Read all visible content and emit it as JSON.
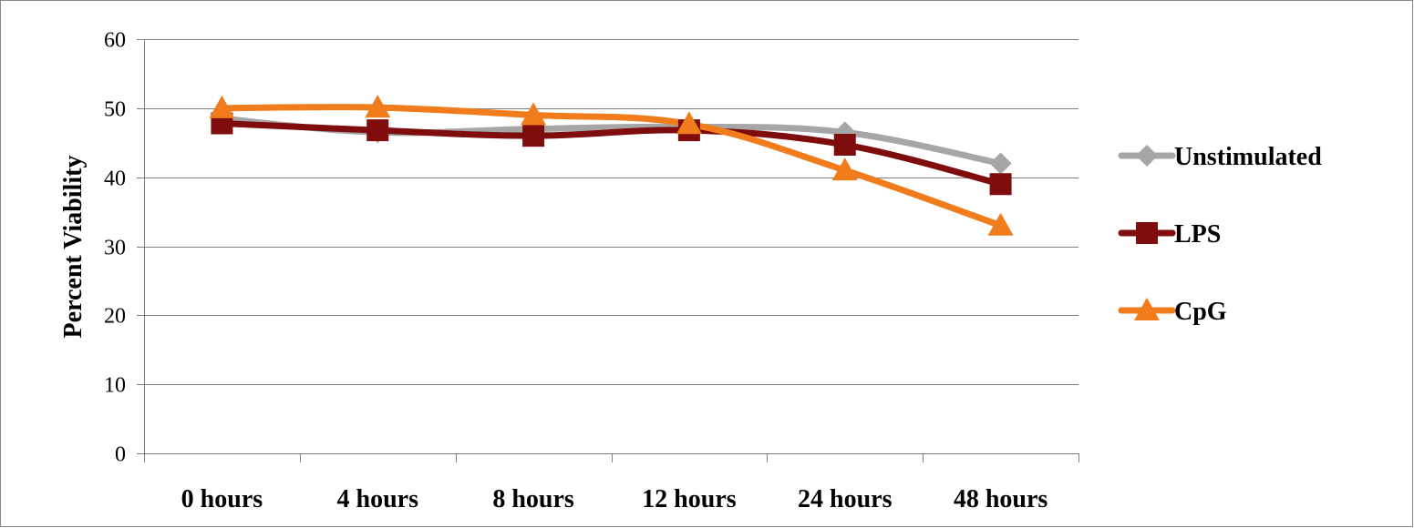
{
  "chart_data": {
    "type": "line",
    "title": "",
    "xlabel": "",
    "ylabel": "Percent Viability",
    "categories": [
      "0 hours",
      "4 hours",
      "8 hours",
      "12 hours",
      "24 hours",
      "48 hours"
    ],
    "ylim": [
      0,
      60
    ],
    "yticks": [
      0,
      10,
      20,
      30,
      40,
      50,
      60
    ],
    "grid": true,
    "legend_position": "right",
    "series": [
      {
        "name": "Unstimulated",
        "values": [
          48.5,
          46.5,
          47.0,
          47.3,
          46.5,
          42.0
        ],
        "color": "#a6a6a6",
        "marker": "diamond"
      },
      {
        "name": "LPS",
        "values": [
          47.8,
          46.8,
          46.0,
          46.8,
          44.7,
          39.0
        ],
        "color": "#7f0d0d",
        "marker": "square"
      },
      {
        "name": "CpG",
        "values": [
          50.0,
          50.1,
          49.0,
          47.7,
          41.0,
          33.0
        ],
        "color": "#f07c1b",
        "marker": "triangle"
      }
    ]
  }
}
